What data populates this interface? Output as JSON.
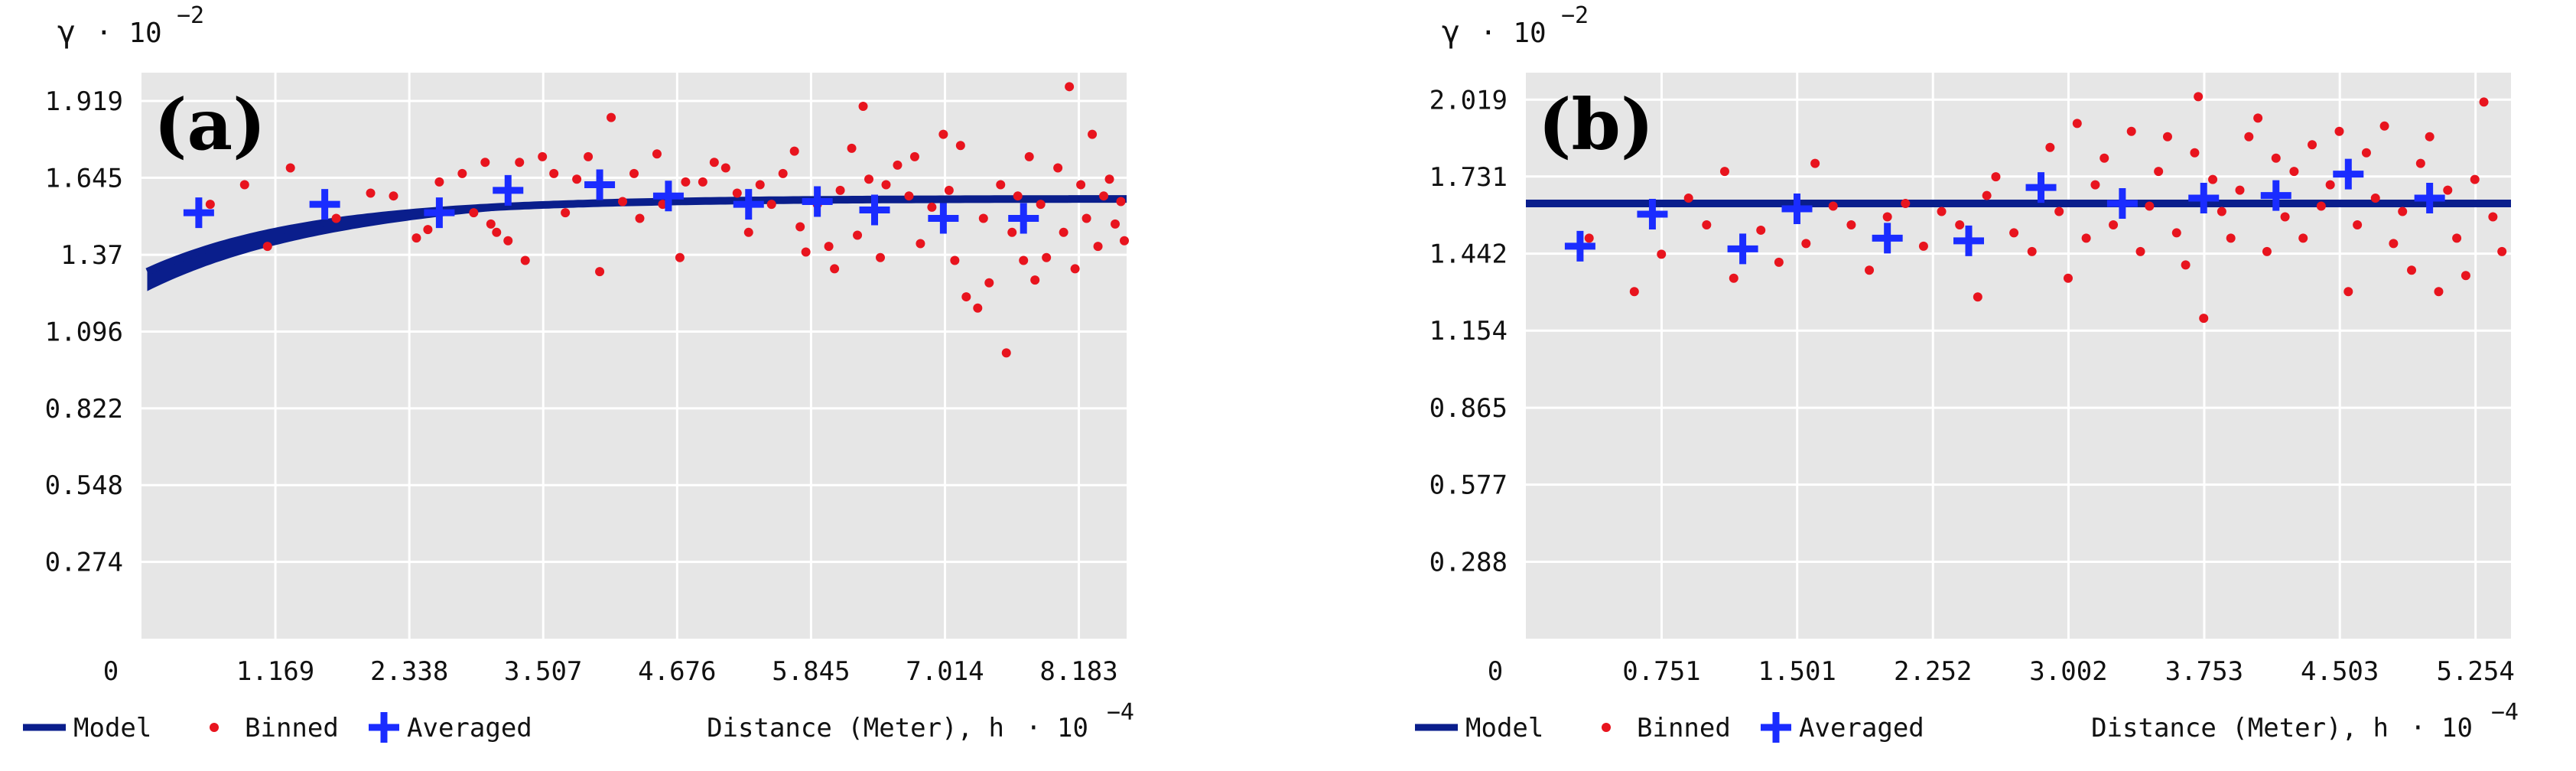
{
  "chart_data": [
    {
      "type": "scatter",
      "panel_label": "(a)",
      "y_symbol": "γ",
      "y_multiplier": "· 10",
      "y_exponent": "−2",
      "xlabel": "Distance (Meter), h",
      "x_multiplier": "· 10",
      "x_exponent": "−4",
      "xlim": [
        0,
        8.6
      ],
      "ylim": [
        0,
        2.02
      ],
      "x_ticks": [
        "0",
        "1.169",
        "2.338",
        "3.507",
        "4.676",
        "5.845",
        "7.014",
        "8.183"
      ],
      "y_ticks": [
        "0.274",
        "0.548",
        "0.822",
        "1.096",
        "1.37",
        "1.645",
        "1.919"
      ],
      "grid": true,
      "legend": {
        "position": "bottom-left",
        "items": [
          "Model",
          "Binned",
          "Averaged"
        ]
      },
      "model": {
        "name": "Model",
        "color": "#0a1e8c",
        "sill": 1.57,
        "nugget": 1.3,
        "range": 4.2,
        "band_start": 0.05
      },
      "averaged": {
        "name": "Averaged",
        "color": "#1a2cff",
        "points": [
          [
            0.5,
            1.52
          ],
          [
            1.6,
            1.55
          ],
          [
            2.6,
            1.52
          ],
          [
            3.2,
            1.6
          ],
          [
            4.0,
            1.62
          ],
          [
            4.6,
            1.58
          ],
          [
            5.3,
            1.55
          ],
          [
            5.9,
            1.56
          ],
          [
            6.4,
            1.53
          ],
          [
            7.0,
            1.5
          ],
          [
            7.7,
            1.5
          ]
        ]
      },
      "binned": {
        "name": "Binned",
        "color": "#e8141e",
        "points": [
          [
            0.6,
            1.55
          ],
          [
            0.9,
            1.62
          ],
          [
            1.1,
            1.4
          ],
          [
            1.3,
            1.68
          ],
          [
            1.7,
            1.5
          ],
          [
            2.0,
            1.59
          ],
          [
            2.2,
            1.58
          ],
          [
            2.4,
            1.43
          ],
          [
            2.5,
            1.46
          ],
          [
            2.6,
            1.63
          ],
          [
            2.8,
            1.66
          ],
          [
            2.9,
            1.52
          ],
          [
            3.0,
            1.7
          ],
          [
            3.05,
            1.48
          ],
          [
            3.1,
            1.45
          ],
          [
            3.2,
            1.42
          ],
          [
            3.3,
            1.7
          ],
          [
            3.35,
            1.35
          ],
          [
            3.5,
            1.72
          ],
          [
            3.6,
            1.66
          ],
          [
            3.7,
            1.52
          ],
          [
            3.8,
            1.64
          ],
          [
            3.9,
            1.72
          ],
          [
            4.0,
            1.31
          ],
          [
            4.1,
            1.86
          ],
          [
            4.2,
            1.56
          ],
          [
            4.3,
            1.66
          ],
          [
            4.35,
            1.5
          ],
          [
            4.5,
            1.73
          ],
          [
            4.55,
            1.55
          ],
          [
            4.7,
            1.36
          ],
          [
            4.75,
            1.63
          ],
          [
            4.9,
            1.63
          ],
          [
            5.0,
            1.7
          ],
          [
            5.1,
            1.68
          ],
          [
            5.2,
            1.59
          ],
          [
            5.3,
            1.45
          ],
          [
            5.4,
            1.62
          ],
          [
            5.5,
            1.55
          ],
          [
            5.6,
            1.66
          ],
          [
            5.7,
            1.74
          ],
          [
            5.75,
            1.47
          ],
          [
            5.8,
            1.38
          ],
          [
            5.9,
            1.55
          ],
          [
            6.0,
            1.4
          ],
          [
            6.05,
            1.32
          ],
          [
            6.1,
            1.6
          ],
          [
            6.2,
            1.75
          ],
          [
            6.25,
            1.44
          ],
          [
            6.3,
            1.9
          ],
          [
            6.35,
            1.64
          ],
          [
            6.45,
            1.36
          ],
          [
            6.5,
            1.62
          ],
          [
            6.6,
            1.69
          ],
          [
            6.7,
            1.58
          ],
          [
            6.75,
            1.72
          ],
          [
            6.8,
            1.41
          ],
          [
            6.9,
            1.54
          ],
          [
            7.0,
            1.8
          ],
          [
            7.05,
            1.6
          ],
          [
            7.1,
            1.35
          ],
          [
            7.15,
            1.76
          ],
          [
            7.2,
            1.22
          ],
          [
            7.3,
            1.18
          ],
          [
            7.35,
            1.5
          ],
          [
            7.4,
            1.27
          ],
          [
            7.5,
            1.62
          ],
          [
            7.55,
            1.02
          ],
          [
            7.6,
            1.45
          ],
          [
            7.65,
            1.58
          ],
          [
            7.7,
            1.35
          ],
          [
            7.75,
            1.72
          ],
          [
            7.8,
            1.28
          ],
          [
            7.85,
            1.55
          ],
          [
            7.9,
            1.36
          ],
          [
            8.0,
            1.68
          ],
          [
            8.05,
            1.45
          ],
          [
            8.1,
            1.97
          ],
          [
            8.15,
            1.32
          ],
          [
            8.2,
            1.62
          ],
          [
            8.25,
            1.5
          ],
          [
            8.3,
            1.8
          ],
          [
            8.35,
            1.4
          ],
          [
            8.4,
            1.58
          ],
          [
            8.45,
            1.64
          ],
          [
            8.5,
            1.48
          ],
          [
            8.55,
            1.56
          ],
          [
            8.58,
            1.42
          ]
        ]
      }
    },
    {
      "type": "scatter",
      "panel_label": "(b)",
      "y_symbol": "γ",
      "y_multiplier": "· 10",
      "y_exponent": "−2",
      "xlabel": "Distance (Meter), h",
      "x_multiplier": "· 10",
      "x_exponent": "−4",
      "xlim": [
        0,
        5.45
      ],
      "ylim": [
        0,
        2.12
      ],
      "x_ticks": [
        "0",
        "0.751",
        "1.501",
        "2.252",
        "3.002",
        "3.753",
        "4.503",
        "5.254"
      ],
      "y_ticks": [
        "0.288",
        "0.577",
        "0.865",
        "1.154",
        "1.442",
        "1.731",
        "2.019"
      ],
      "grid": true,
      "legend": {
        "position": "bottom-left",
        "items": [
          "Model",
          "Binned",
          "Averaged"
        ]
      },
      "model": {
        "name": "Model",
        "color": "#0a1e8c",
        "sill": 1.63,
        "nugget": 1.63,
        "range": 0.01,
        "band_start": 0.0
      },
      "averaged": {
        "name": "Averaged",
        "color": "#1a2cff",
        "points": [
          [
            0.3,
            1.47
          ],
          [
            0.7,
            1.59
          ],
          [
            1.2,
            1.46
          ],
          [
            1.5,
            1.61
          ],
          [
            2.0,
            1.5
          ],
          [
            2.45,
            1.49
          ],
          [
            2.85,
            1.69
          ],
          [
            3.3,
            1.63
          ],
          [
            3.75,
            1.65
          ],
          [
            4.15,
            1.66
          ],
          [
            4.55,
            1.74
          ],
          [
            5.0,
            1.65
          ]
        ]
      },
      "binned": {
        "name": "Binned",
        "color": "#e8141e",
        "points": [
          [
            0.35,
            1.5
          ],
          [
            0.6,
            1.3
          ],
          [
            0.75,
            1.44
          ],
          [
            0.9,
            1.65
          ],
          [
            1.0,
            1.55
          ],
          [
            1.1,
            1.75
          ],
          [
            1.15,
            1.35
          ],
          [
            1.3,
            1.53
          ],
          [
            1.4,
            1.41
          ],
          [
            1.55,
            1.48
          ],
          [
            1.6,
            1.78
          ],
          [
            1.7,
            1.62
          ],
          [
            1.8,
            1.55
          ],
          [
            1.9,
            1.38
          ],
          [
            2.0,
            1.58
          ],
          [
            2.1,
            1.63
          ],
          [
            2.2,
            1.47
          ],
          [
            2.3,
            1.6
          ],
          [
            2.4,
            1.55
          ],
          [
            2.5,
            1.28
          ],
          [
            2.55,
            1.66
          ],
          [
            2.6,
            1.73
          ],
          [
            2.7,
            1.52
          ],
          [
            2.8,
            1.45
          ],
          [
            2.9,
            1.84
          ],
          [
            2.95,
            1.6
          ],
          [
            3.0,
            1.35
          ],
          [
            3.05,
            1.93
          ],
          [
            3.1,
            1.5
          ],
          [
            3.15,
            1.7
          ],
          [
            3.2,
            1.8
          ],
          [
            3.25,
            1.55
          ],
          [
            3.35,
            1.9
          ],
          [
            3.4,
            1.45
          ],
          [
            3.45,
            1.62
          ],
          [
            3.5,
            1.75
          ],
          [
            3.55,
            1.88
          ],
          [
            3.6,
            1.52
          ],
          [
            3.65,
            1.4
          ],
          [
            3.7,
            1.82
          ],
          [
            3.72,
            2.03
          ],
          [
            3.75,
            1.2
          ],
          [
            3.8,
            1.72
          ],
          [
            3.85,
            1.6
          ],
          [
            3.9,
            1.5
          ],
          [
            3.95,
            1.68
          ],
          [
            4.0,
            1.88
          ],
          [
            4.05,
            1.95
          ],
          [
            4.1,
            1.45
          ],
          [
            4.15,
            1.8
          ],
          [
            4.2,
            1.58
          ],
          [
            4.25,
            1.75
          ],
          [
            4.3,
            1.5
          ],
          [
            4.35,
            1.85
          ],
          [
            4.4,
            1.62
          ],
          [
            4.45,
            1.7
          ],
          [
            4.5,
            1.9
          ],
          [
            4.55,
            1.3
          ],
          [
            4.6,
            1.55
          ],
          [
            4.65,
            1.82
          ],
          [
            4.7,
            1.65
          ],
          [
            4.75,
            1.92
          ],
          [
            4.8,
            1.48
          ],
          [
            4.85,
            1.6
          ],
          [
            4.9,
            1.38
          ],
          [
            4.95,
            1.78
          ],
          [
            5.0,
            1.88
          ],
          [
            5.05,
            1.3
          ],
          [
            5.1,
            1.68
          ],
          [
            5.15,
            1.5
          ],
          [
            5.2,
            1.36
          ],
          [
            5.25,
            1.72
          ],
          [
            5.3,
            2.01
          ],
          [
            5.35,
            1.58
          ],
          [
            5.4,
            1.45
          ]
        ]
      }
    }
  ]
}
